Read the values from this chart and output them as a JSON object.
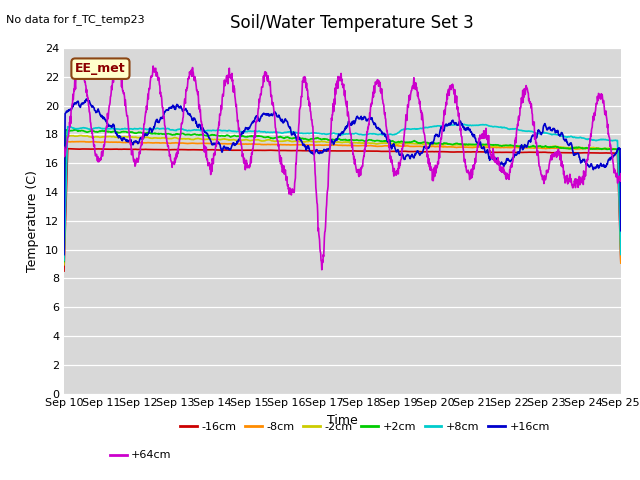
{
  "title": "Soil/Water Temperature Set 3",
  "no_data_label": "No data for f_TC_temp23",
  "ee_met_label": "EE_met",
  "xlabel": "Time",
  "ylabel": "Temperature (C)",
  "ylim": [
    0,
    24
  ],
  "yticks": [
    0,
    2,
    4,
    6,
    8,
    10,
    12,
    14,
    16,
    18,
    20,
    22,
    24
  ],
  "xtick_labels": [
    "Sep 10",
    "Sep 11",
    "Sep 12",
    "Sep 13",
    "Sep 14",
    "Sep 15",
    "Sep 16",
    "Sep 17",
    "Sep 18",
    "Sep 19",
    "Sep 20",
    "Sep 21",
    "Sep 22",
    "Sep 23",
    "Sep 24",
    "Sep 25"
  ],
  "bg_color": "#d8d8d8",
  "fig_color": "#ffffff",
  "series_order": [
    "-16cm",
    "-8cm",
    "-2cm",
    "+2cm",
    "+8cm",
    "+16cm",
    "+64cm"
  ],
  "series": {
    "-16cm": {
      "color": "#cc0000",
      "lw": 1.2
    },
    "-8cm": {
      "color": "#ff8c00",
      "lw": 1.2
    },
    "-2cm": {
      "color": "#cccc00",
      "lw": 1.2
    },
    "+2cm": {
      "color": "#00cc00",
      "lw": 1.2
    },
    "+8cm": {
      "color": "#00cccc",
      "lw": 1.2
    },
    "+16cm": {
      "color": "#0000cc",
      "lw": 1.2
    },
    "+64cm": {
      "color": "#cc00cc",
      "lw": 1.2
    }
  },
  "title_fontsize": 12,
  "axis_label_fontsize": 9,
  "tick_fontsize": 8
}
